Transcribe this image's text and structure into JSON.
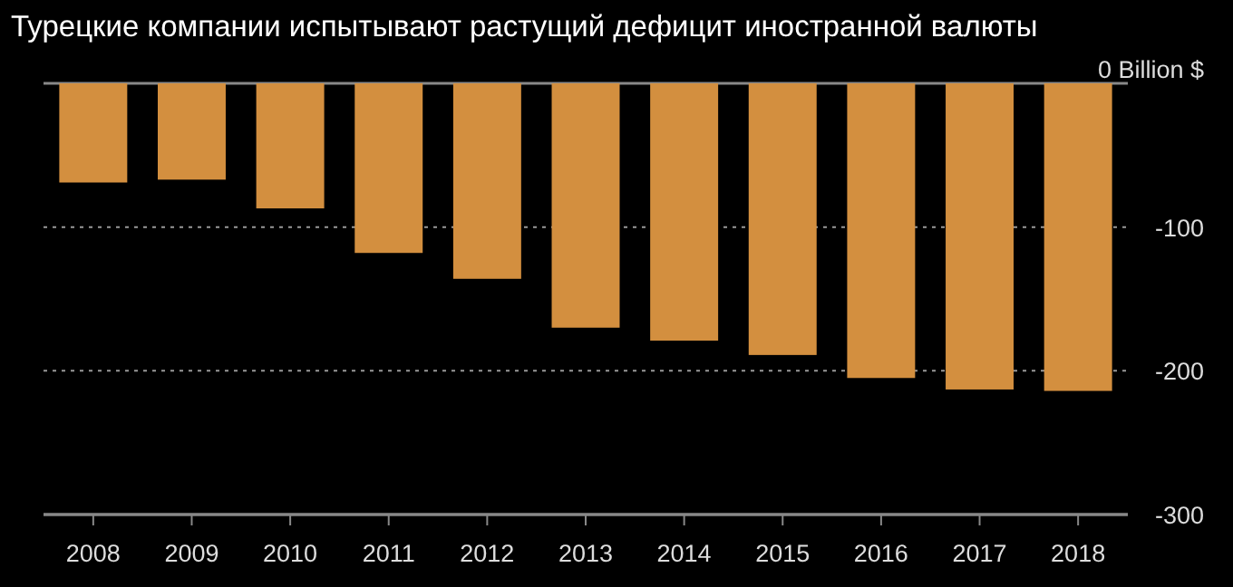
{
  "chart_data": {
    "type": "bar",
    "title": "Турецкие компании испытывают растущий дефицит иностранной валюты",
    "categories": [
      "2008",
      "2009",
      "2010",
      "2011",
      "2012",
      "2013",
      "2014",
      "2015",
      "2016",
      "2017",
      "2018"
    ],
    "values": [
      -69,
      -67,
      -87,
      -118,
      -136,
      -170,
      -179,
      -189,
      -205,
      -213,
      -214
    ],
    "color": "#d38f3f",
    "ylim": [
      -300,
      0
    ],
    "yticks": [
      {
        "value": 0,
        "label": "0 Billion $"
      },
      -100,
      -200,
      -300
    ],
    "grid": "y"
  }
}
